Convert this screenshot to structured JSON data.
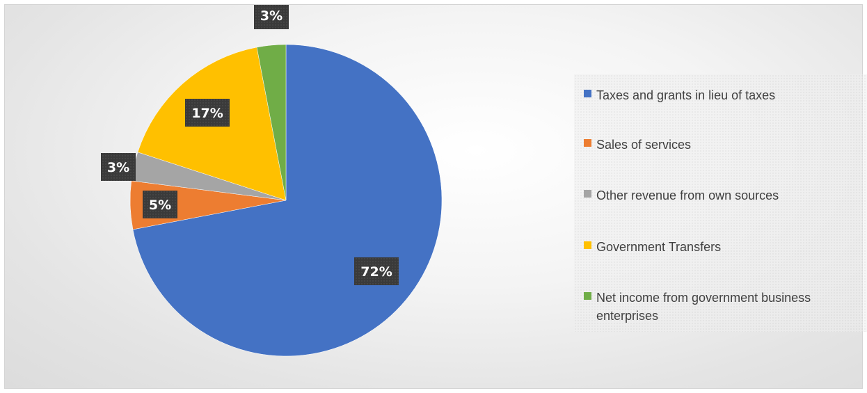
{
  "chart_data": {
    "type": "pie",
    "title": "",
    "start_angle_deg": 0,
    "direction": "clockwise",
    "slices": [
      {
        "name": "Taxes and grants in lieu of taxes",
        "value": 72,
        "label": "72%",
        "color": "#4472c4"
      },
      {
        "name": "Sales of services",
        "value": 5,
        "label": "5%",
        "color": "#ed7d31"
      },
      {
        "name": "Other revenue from own sources",
        "value": 3,
        "label": "3%",
        "color": "#a5a5a5"
      },
      {
        "name": "Government Transfers",
        "value": 17,
        "label": "17%",
        "color": "#ffc000"
      },
      {
        "name": "Net income from government business enterprises",
        "value": 3,
        "label": "3%",
        "color": "#70ad47"
      }
    ],
    "legend_position": "right"
  }
}
